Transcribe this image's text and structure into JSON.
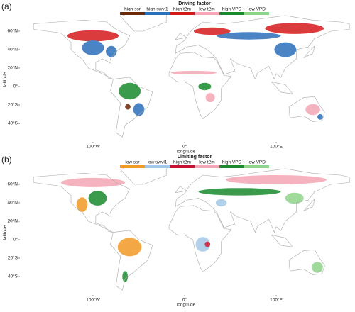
{
  "panels": [
    {
      "label": "(a)",
      "legend_title": "Driving factor",
      "legend": [
        {
          "label": "high ssr",
          "color": "#6b2a0a"
        },
        {
          "label": "high swvl1",
          "color": "#2c6fbb"
        },
        {
          "label": "high t2m",
          "color": "#d7191c"
        },
        {
          "label": "low t2m",
          "color": "#f4a6b4"
        },
        {
          "label": "high VPD",
          "color": "#1a8a2e"
        },
        {
          "label": "low VPD",
          "color": "#8fd48a"
        }
      ],
      "xlabel": "longitude",
      "ylabel": "latitude",
      "xticks": [
        {
          "value": -100,
          "label": "100°W"
        },
        {
          "value": 0,
          "label": "0°"
        },
        {
          "value": 100,
          "label": "100°E"
        }
      ],
      "yticks": [
        {
          "value": 60,
          "label": "60°N"
        },
        {
          "value": 40,
          "label": "40°N"
        },
        {
          "value": 20,
          "label": "20°N"
        },
        {
          "value": 0,
          "label": "0°"
        },
        {
          "value": -20,
          "label": "20°S"
        },
        {
          "value": -40,
          "label": "40°S"
        }
      ]
    },
    {
      "label": "(b)",
      "legend_title": "Limiting factor",
      "legend": [
        {
          "label": "low ssr",
          "color": "#f39a25"
        },
        {
          "label": "low swvl1",
          "color": "#a6c8e8"
        },
        {
          "label": "high t2m",
          "color": "#c8102e"
        },
        {
          "label": "low t2m",
          "color": "#f4a6b4"
        },
        {
          "label": "high VPD",
          "color": "#1a8a2e"
        },
        {
          "label": "low VPD",
          "color": "#8fd48a"
        }
      ],
      "xlabel": "longitude",
      "ylabel": "latitude",
      "xticks": [
        {
          "value": -100,
          "label": "100°W"
        },
        {
          "value": 0,
          "label": "0°"
        },
        {
          "value": 100,
          "label": "100°E"
        }
      ],
      "yticks": [
        {
          "value": 60,
          "label": "60°N"
        },
        {
          "value": 40,
          "label": "40°N"
        },
        {
          "value": 20,
          "label": "20°N"
        },
        {
          "value": 0,
          "label": "0°"
        },
        {
          "value": -20,
          "label": "20°S"
        },
        {
          "value": -40,
          "label": "40°S"
        }
      ]
    }
  ]
}
